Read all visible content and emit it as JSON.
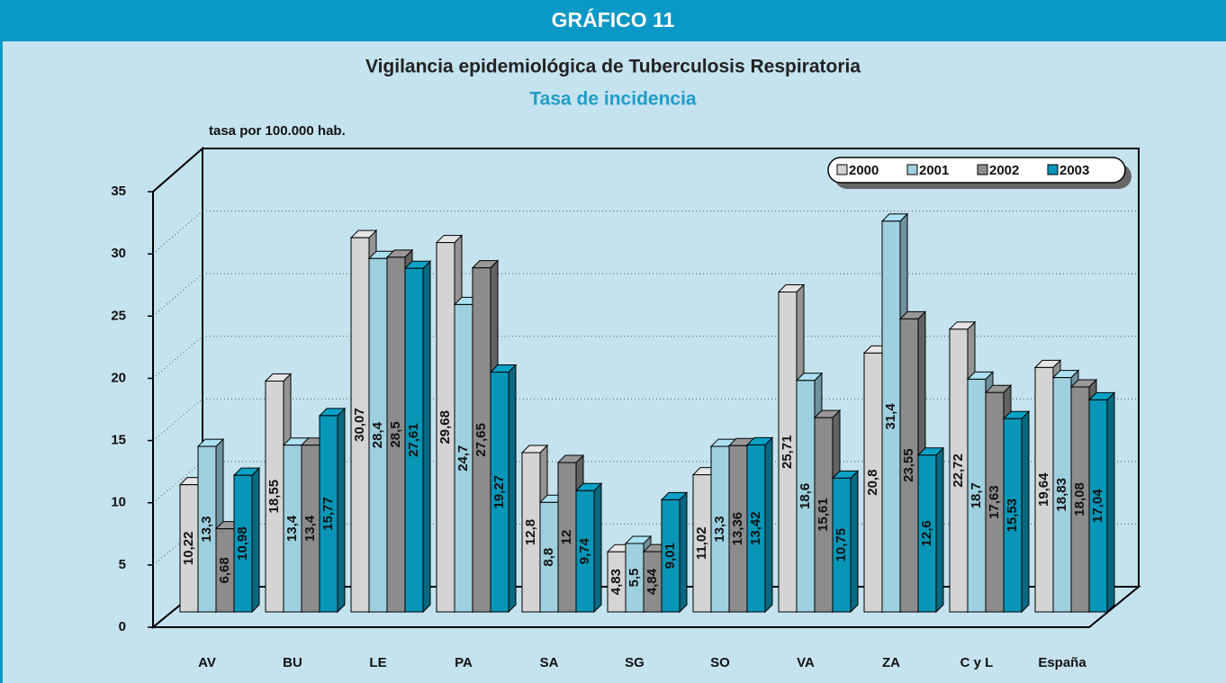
{
  "header": "GRÁFICO 11",
  "chart_data": {
    "type": "bar3d",
    "title": "Vigilancia epidemiológica de Tuberculosis Respiratoria",
    "subtitle": "Tasa de incidencia",
    "y_label": "tasa por 100.000 hab.",
    "categories": [
      "AV",
      "BU",
      "LE",
      "PA",
      "SA",
      "SG",
      "SO",
      "VA",
      "ZA",
      "C y L",
      "España"
    ],
    "series": [
      {
        "name": "2000",
        "color": "#d4d4d4",
        "values": [
          10.22,
          18.55,
          30.07,
          29.68,
          12.8,
          4.83,
          11.02,
          25.71,
          20.8,
          22.72,
          19.64
        ],
        "value_labels": [
          "10,22",
          "18,55",
          "30,07",
          "29,68",
          "12,8",
          "4,83",
          "11,02",
          "25,71",
          "20,8",
          "22,72",
          "19,64"
        ]
      },
      {
        "name": "2001",
        "color": "#9fd0e0",
        "values": [
          13.3,
          13.4,
          28.4,
          24.7,
          8.8,
          5.5,
          13.3,
          18.6,
          31.4,
          18.7,
          18.83
        ],
        "value_labels": [
          "13,3",
          "13,4",
          "28,4",
          "24,7",
          "8,8",
          "5,5",
          "13,3",
          "18,6",
          "31,4",
          "18,7",
          "18,83"
        ]
      },
      {
        "name": "2002",
        "color": "#8c8c8c",
        "values": [
          6.68,
          13.4,
          28.5,
          27.65,
          12,
          4.84,
          13.36,
          15.61,
          23.55,
          17.63,
          18.08
        ],
        "value_labels": [
          "6,68",
          "13,4",
          "28,5",
          "27,65",
          "12",
          "4,84",
          "13,36",
          "15,61",
          "23,55",
          "17,63",
          "18,08"
        ]
      },
      {
        "name": "2003",
        "color": "#0896b8",
        "values": [
          10.98,
          15.77,
          27.61,
          19.27,
          9.74,
          9.01,
          13.42,
          10.75,
          12.6,
          15.53,
          17.04
        ],
        "value_labels": [
          "10,98",
          "15,77",
          "27,61",
          "19,27",
          "9,74",
          "9,01",
          "13,42",
          "10,75",
          "12,6",
          "15,53",
          "17,04"
        ]
      }
    ],
    "ylim": [
      0,
      35
    ],
    "yticks": [
      0,
      5,
      10,
      15,
      20,
      25,
      30,
      35
    ],
    "grid": true,
    "legend": "top-right"
  }
}
